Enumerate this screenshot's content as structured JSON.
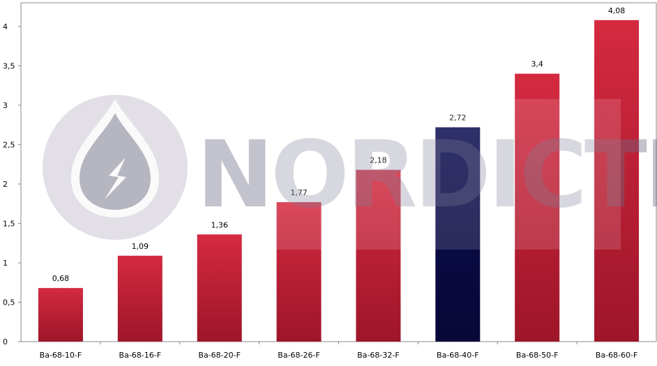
{
  "watermark": {
    "brand": "NORDICTEC"
  },
  "chart_data": {
    "type": "bar",
    "categories": [
      "Ba-68-10-F",
      "Ba-68-16-F",
      "Ba-68-20-F",
      "Ba-68-26-F",
      "Ba-68-32-F",
      "Ba-68-40-F",
      "Ba-68-50-F",
      "Ba-68-60-F"
    ],
    "values": [
      0.68,
      1.09,
      1.36,
      1.77,
      2.18,
      2.72,
      3.4,
      4.08
    ],
    "value_labels": [
      "0,68",
      "1,09",
      "1,36",
      "1,77",
      "2,18",
      "2,72",
      "3,4",
      "4,08"
    ],
    "ylim": [
      0,
      4.3
    ],
    "yticks": [
      0,
      0.5,
      1,
      1.5,
      2,
      2.5,
      3,
      3.5,
      4
    ],
    "ytick_labels": [
      "0",
      "0,5",
      "1",
      "1,5",
      "2",
      "2,5",
      "3",
      "3,5",
      "4"
    ],
    "bar_colors": [
      "#c8203a",
      "#c8203a",
      "#c8203a",
      "#c8203a",
      "#c8203a",
      "#0a0a45",
      "#c8203a",
      "#c8203a"
    ],
    "grid": false,
    "legend": "none"
  }
}
